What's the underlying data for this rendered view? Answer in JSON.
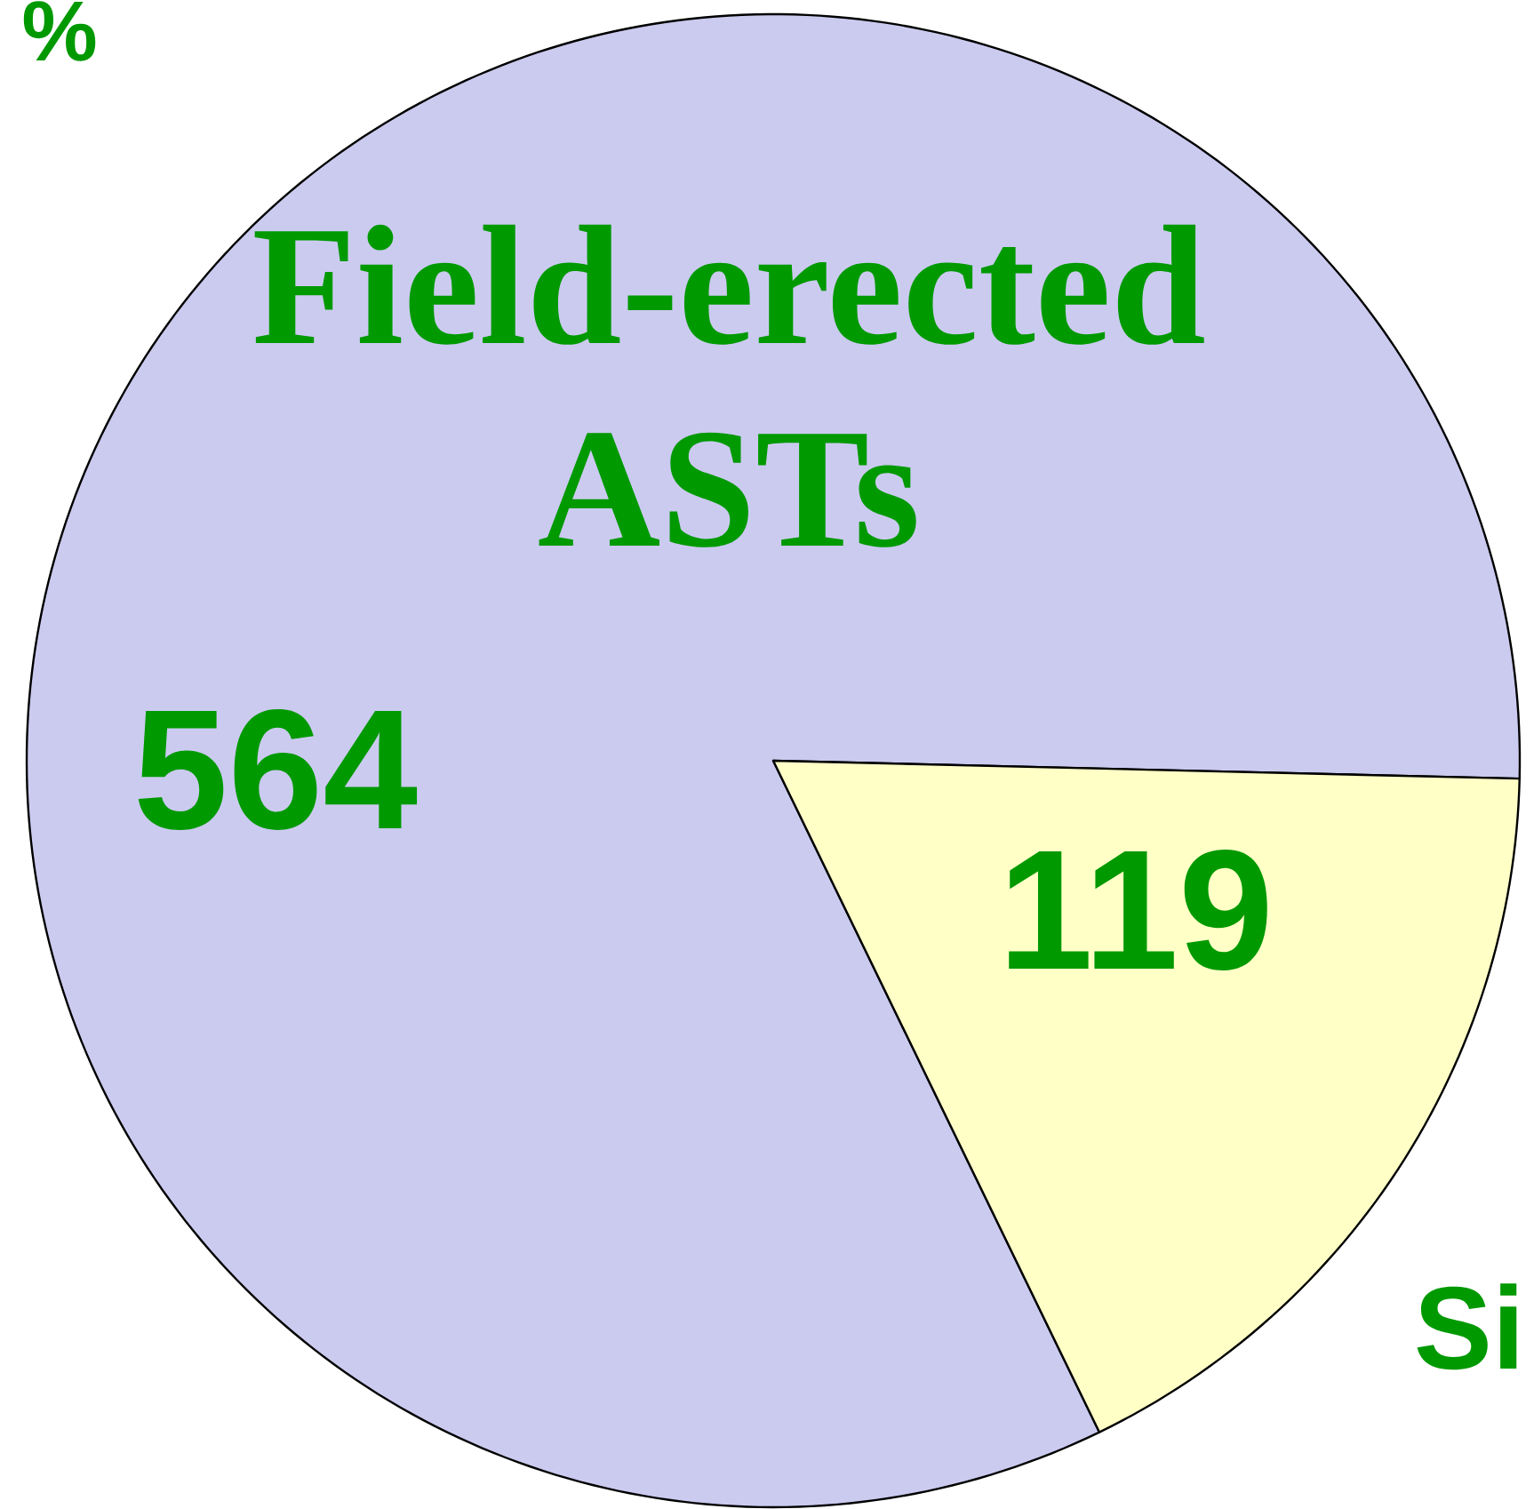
{
  "chart_data": {
    "type": "pie",
    "categories": [
      "Field-erected ASTs",
      null
    ],
    "values": [
      564,
      119
    ],
    "colors": [
      "#cbcbf0",
      "#ffffc6"
    ],
    "data_labels": true,
    "annotations": [
      "%",
      "Si"
    ]
  }
}
